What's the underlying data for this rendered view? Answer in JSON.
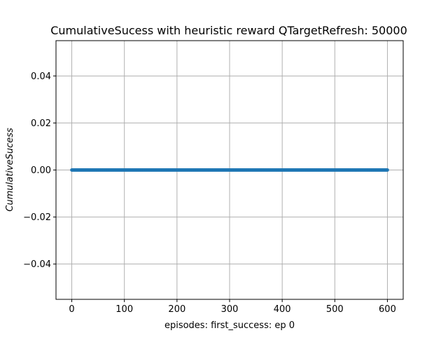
{
  "chart_data": {
    "type": "line",
    "title": "CumulativeSucess with heuristic reward QTargetRefresh: 50000",
    "xlabel": "episodes: first_success: ep 0",
    "ylabel": "CumulativeSucess",
    "xlim": [
      -30,
      630
    ],
    "ylim": [
      -0.055,
      0.055
    ],
    "x_ticks": [
      0,
      100,
      200,
      300,
      400,
      500,
      600
    ],
    "x_tick_labels": [
      "0",
      "100",
      "200",
      "300",
      "400",
      "500",
      "600"
    ],
    "y_ticks": [
      -0.04,
      -0.02,
      0.0,
      0.02,
      0.04
    ],
    "y_tick_labels": [
      "−0.04",
      "−0.02",
      "0.00",
      "0.02",
      "0.04"
    ],
    "grid": true,
    "series": [
      {
        "color": "#1f77b4",
        "marker": "dot",
        "x_start": 0,
        "x_end": 600,
        "x_step": 1,
        "y_constant": 0.0
      }
    ]
  }
}
